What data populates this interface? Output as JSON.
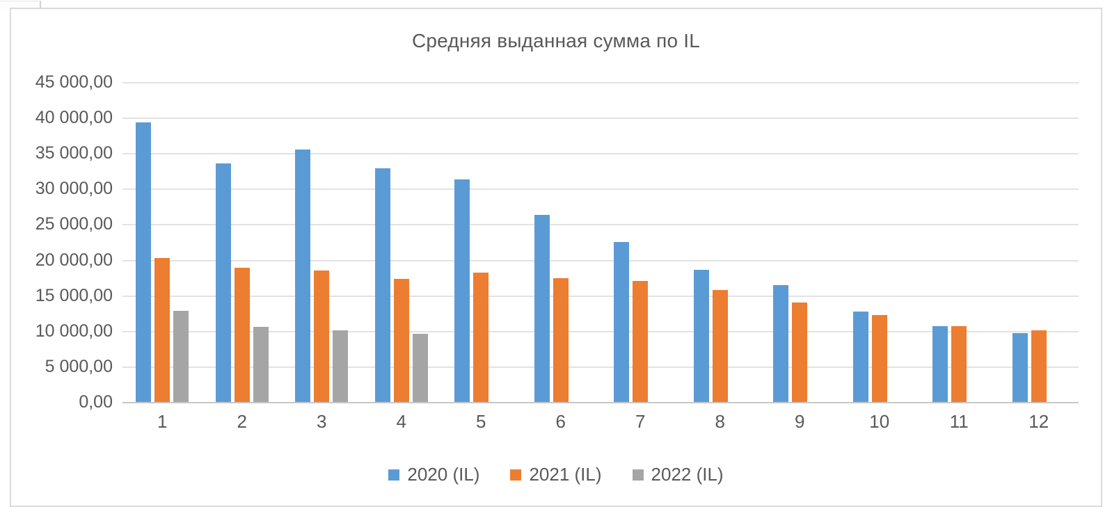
{
  "window": {
    "background": "#ffffff",
    "frame_border_color": "#dadada"
  },
  "chart_data": {
    "type": "bar",
    "title": "Средняя выданная сумма по IL",
    "categories": [
      "1",
      "2",
      "3",
      "4",
      "5",
      "6",
      "7",
      "8",
      "9",
      "10",
      "11",
      "12"
    ],
    "series": [
      {
        "name": "2020 (IL)",
        "color": "#5B9BD5",
        "values": [
          39300,
          33600,
          35500,
          32900,
          31300,
          26300,
          22500,
          18600,
          16400,
          12700,
          10650,
          9700
        ]
      },
      {
        "name": "2021 (IL)",
        "color": "#ED7D31",
        "values": [
          20300,
          18900,
          18500,
          17300,
          18200,
          17400,
          17000,
          15800,
          14000,
          12200,
          10650,
          10100
        ]
      },
      {
        "name": "2022 (IL)",
        "color": "#A5A5A5",
        "values": [
          12800,
          10600,
          10100,
          9600,
          null,
          null,
          null,
          null,
          null,
          null,
          null,
          null
        ]
      }
    ],
    "ylim": [
      0,
      45000
    ],
    "y_tick_step": 5000,
    "y_tick_labels": [
      "0,00",
      "5 000,00",
      "10 000,00",
      "15 000,00",
      "20 000,00",
      "25 000,00",
      "30 000,00",
      "35 000,00",
      "40 000,00",
      "45 000,00"
    ],
    "xlabel": "",
    "ylabel": "",
    "grid": "horizontal",
    "legend_position": "bottom",
    "text_color": "#595959",
    "gridline_color": "#e2e2e2",
    "axis_line_color": "#c6c6c6"
  }
}
